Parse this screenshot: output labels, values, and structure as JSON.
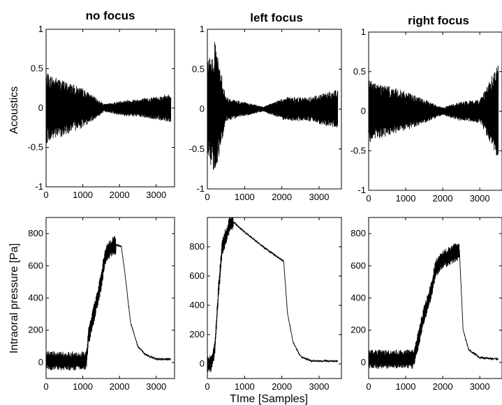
{
  "chart_data": [
    {
      "type": "line",
      "title": "no focus",
      "ylabel": "Acoustics",
      "xlabel": "",
      "xlim": [
        0,
        3500
      ],
      "ylim": [
        -1,
        1
      ],
      "xticks": [
        "0",
        "1000",
        "2000",
        "3000"
      ],
      "yticks": [
        "-1",
        "-0.5",
        "0",
        "0.5",
        "1"
      ],
      "series": [
        {
          "x": [
            0,
            1000,
            1600,
            2100,
            2600,
            3400
          ],
          "y": [
            0.45,
            0.25,
            0.05,
            0.1,
            0.12,
            0.18
          ]
        }
      ]
    },
    {
      "type": "line",
      "title": "left focus",
      "ylabel": "",
      "xlabel": "",
      "xlim": [
        0,
        3600
      ],
      "ylim": [
        -1,
        1
      ],
      "xticks": [
        "0",
        "1000",
        "2000",
        "3000"
      ],
      "yticks": [
        "-1",
        "-0.5",
        "0",
        "0.5",
        "1"
      ],
      "series": [
        {
          "x": [
            0,
            200,
            500,
            1500,
            2100,
            2700,
            3500
          ],
          "y": [
            0.6,
            0.85,
            0.15,
            0.03,
            0.15,
            0.15,
            0.25
          ]
        }
      ]
    },
    {
      "type": "line",
      "title": "right focus",
      "ylabel": "",
      "xlabel": "",
      "xlim": [
        0,
        3600
      ],
      "ylim": [
        -1,
        1
      ],
      "xticks": [
        "0",
        "1000",
        "2000",
        "3000"
      ],
      "yticks": [
        "-1",
        "-0.5",
        "0",
        "0.5",
        "1"
      ],
      "series": [
        {
          "x": [
            0,
            1000,
            2000,
            2450,
            3000,
            3500
          ],
          "y": [
            0.4,
            0.25,
            0.05,
            0.12,
            0.15,
            0.6
          ]
        }
      ]
    },
    {
      "type": "line",
      "title": "",
      "ylabel": "Intraoral pressure [Pa]",
      "xlabel": "",
      "xlim": [
        0,
        3500
      ],
      "ylim": [
        -100,
        900
      ],
      "xticks": [
        "0",
        "1000",
        "2000",
        "3000"
      ],
      "yticks": [
        "0",
        "200",
        "400",
        "600",
        "800"
      ],
      "series": [
        {
          "x": [
            0,
            1100,
            1150,
            1300,
            1500,
            1600,
            1700,
            1900,
            2050,
            2150,
            2300,
            2500,
            2700,
            3000,
            3400
          ],
          "y": [
            10,
            10,
            150,
            300,
            500,
            650,
            700,
            730,
            720,
            550,
            250,
            100,
            50,
            20,
            20
          ]
        }
      ]
    },
    {
      "type": "line",
      "title": "",
      "ylabel": "",
      "xlabel": "TIme [Samples]",
      "xlim": [
        0,
        3600
      ],
      "ylim": [
        -100,
        1000
      ],
      "xticks": [
        "0",
        "1000",
        "2000",
        "3000"
      ],
      "yticks": [
        "0",
        "200",
        "400",
        "600",
        "800"
      ],
      "series": [
        {
          "x": [
            0,
            100,
            200,
            300,
            400,
            600,
            700,
            1000,
            1500,
            2050,
            2150,
            2300,
            2500,
            2800,
            3500
          ],
          "y": [
            0,
            0,
            100,
            500,
            800,
            950,
            970,
            900,
            800,
            700,
            350,
            150,
            50,
            20,
            20
          ]
        }
      ]
    },
    {
      "type": "line",
      "title": "",
      "ylabel": "",
      "xlabel": "",
      "xlim": [
        0,
        3600
      ],
      "ylim": [
        -100,
        900
      ],
      "xticks": [
        "0",
        "1000",
        "2000",
        "3000"
      ],
      "yticks": [
        "0",
        "200",
        "400",
        "600",
        "800"
      ],
      "series": [
        {
          "x": [
            0,
            1200,
            1300,
            1500,
            1700,
            1800,
            2000,
            2400,
            2450,
            2550,
            2700,
            3000,
            3500
          ],
          "y": [
            20,
            20,
            100,
            300,
            450,
            580,
            640,
            690,
            700,
            200,
            80,
            30,
            20
          ]
        }
      ]
    }
  ]
}
